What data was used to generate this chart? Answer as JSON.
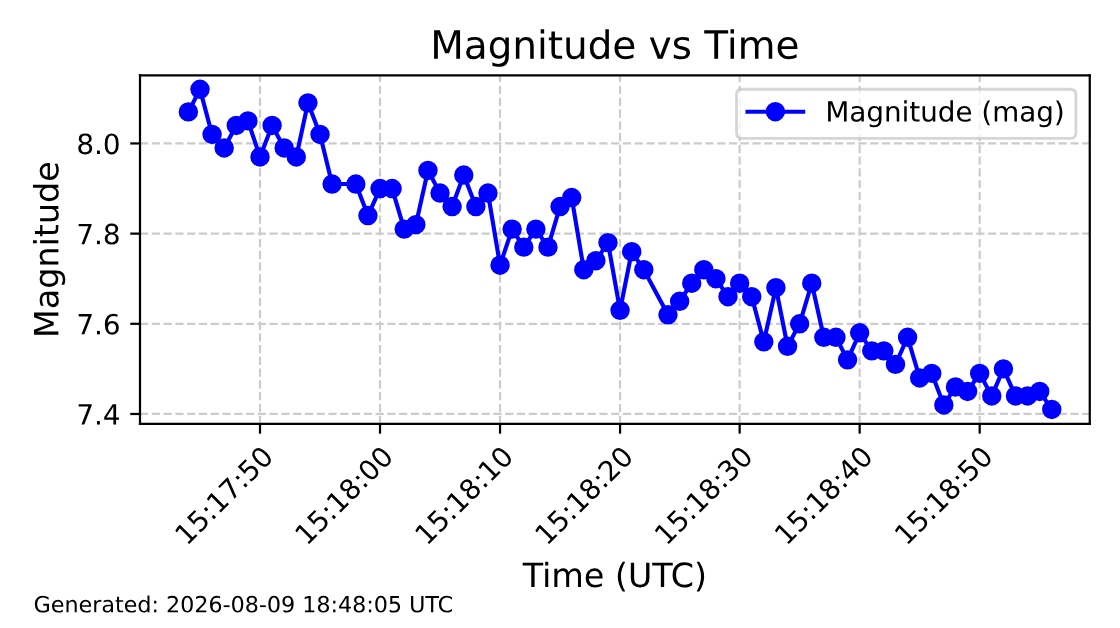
{
  "chart_data": {
    "type": "line",
    "title": "Magnitude vs Time",
    "xlabel": "Time (UTC)",
    "ylabel": "Magnitude",
    "annotations": [
      "Generated: 2026-08-09 18:48:05 UTC"
    ],
    "x": [
      15.29556,
      15.29583,
      15.29611,
      15.29639,
      15.29667,
      15.29694,
      15.29722,
      15.2975,
      15.29778,
      15.29806,
      15.29833,
      15.29861,
      15.29889,
      15.29944,
      15.29972,
      15.3,
      15.30028,
      15.30056,
      15.30083,
      15.30111,
      15.30139,
      15.30167,
      15.30194,
      15.30222,
      15.3025,
      15.30278,
      15.30306,
      15.30333,
      15.30361,
      15.30389,
      15.30417,
      15.30444,
      15.30472,
      15.305,
      15.30528,
      15.30556,
      15.30583,
      15.30611,
      15.30667,
      15.30694,
      15.30722,
      15.3075,
      15.30778,
      15.30806,
      15.30833,
      15.30861,
      15.30889,
      15.30917,
      15.30944,
      15.30972,
      15.31,
      15.31028,
      15.31056,
      15.31083,
      15.31111,
      15.31139,
      15.31167,
      15.31194,
      15.31222,
      15.3125,
      15.31278,
      15.31306,
      15.31333,
      15.31361,
      15.31389,
      15.31417,
      15.31444,
      15.31472,
      15.315,
      15.31528,
      15.31556
    ],
    "series": [
      {
        "name": "Magnitude (mag)",
        "color": "#0000ff",
        "values": [
          8.07,
          8.12,
          8.02,
          7.99,
          8.04,
          8.05,
          7.97,
          8.04,
          7.99,
          7.97,
          8.09,
          8.02,
          7.91,
          7.91,
          7.84,
          7.9,
          7.9,
          7.81,
          7.82,
          7.94,
          7.89,
          7.86,
          7.93,
          7.86,
          7.89,
          7.73,
          7.81,
          7.77,
          7.81,
          7.77,
          7.86,
          7.88,
          7.72,
          7.74,
          7.78,
          7.63,
          7.76,
          7.72,
          7.62,
          7.65,
          7.69,
          7.72,
          7.7,
          7.66,
          7.69,
          7.66,
          7.56,
          7.68,
          7.55,
          7.6,
          7.69,
          7.57,
          7.57,
          7.52,
          7.58,
          7.54,
          7.54,
          7.51,
          7.57,
          7.48,
          7.49,
          7.42,
          7.46,
          7.45,
          7.49,
          7.44,
          7.5,
          7.44,
          7.44,
          7.45,
          7.41
        ]
      }
    ],
    "xlim": [
      15.29444,
      15.31644
    ],
    "ylim": [
      7.378,
      8.151
    ],
    "xticks": [
      {
        "value": 15.29722,
        "label": "15:17:50"
      },
      {
        "value": 15.3,
        "label": "15:18:00"
      },
      {
        "value": 15.30278,
        "label": "15:18:10"
      },
      {
        "value": 15.30556,
        "label": "15:18:20"
      },
      {
        "value": 15.30833,
        "label": "15:18:30"
      },
      {
        "value": 15.31111,
        "label": "15:18:40"
      },
      {
        "value": 15.31389,
        "label": "15:18:50"
      }
    ],
    "yticks": [
      {
        "value": 7.4,
        "label": "7.4"
      },
      {
        "value": 7.6,
        "label": "7.6"
      },
      {
        "value": 7.8,
        "label": "7.8"
      },
      {
        "value": 8.0,
        "label": "8.0"
      }
    ],
    "grid": true,
    "legend": "top right",
    "marker": "circle",
    "line_style": "solid"
  }
}
